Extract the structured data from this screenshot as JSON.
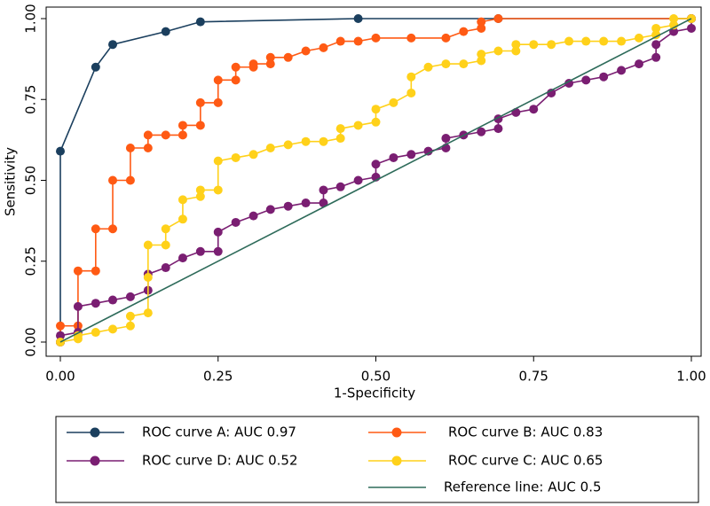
{
  "chart_data": {
    "type": "line",
    "x_label": "1-Specificity",
    "y_label": "Sensitivity",
    "xlim": [
      0,
      1
    ],
    "ylim": [
      0,
      1
    ],
    "xticks": [
      {
        "value": 0,
        "label": "0.00"
      },
      {
        "value": 0.25,
        "label": "0.25"
      },
      {
        "value": 0.5,
        "label": "0.50"
      },
      {
        "value": 0.75,
        "label": "0.75"
      },
      {
        "value": 1,
        "label": "1.00"
      }
    ],
    "yticks": [
      {
        "value": 0,
        "label": "0.00"
      },
      {
        "value": 0.25,
        "label": "0.25"
      },
      {
        "value": 0.5,
        "label": "0.50"
      },
      {
        "value": 0.75,
        "label": "0.75"
      },
      {
        "value": 1,
        "label": "1.00"
      }
    ],
    "grid": false,
    "series": [
      {
        "name": "ROC curve A: AUC 0.97",
        "color": "#1b3f5e",
        "markers": true,
        "x": [
          0,
          0,
          0.056,
          0.083,
          0.167,
          0.222,
          0.472,
          0.694,
          1
        ],
        "values": [
          0,
          0.59,
          0.85,
          0.92,
          0.96,
          0.99,
          1.0,
          1.0,
          1.0
        ]
      },
      {
        "name": "ROC curve B: AUC 0.83",
        "color": "#ff5a14",
        "markers": true,
        "x": [
          0,
          0,
          0.028,
          0.028,
          0.056,
          0.056,
          0.083,
          0.083,
          0.111,
          0.111,
          0.139,
          0.139,
          0.167,
          0.194,
          0.194,
          0.222,
          0.222,
          0.25,
          0.25,
          0.278,
          0.278,
          0.306,
          0.306,
          0.333,
          0.333,
          0.361,
          0.389,
          0.417,
          0.444,
          0.472,
          0.5,
          0.556,
          0.611,
          0.639,
          0.667,
          0.667,
          0.694,
          1
        ],
        "values": [
          0,
          0.05,
          0.05,
          0.22,
          0.22,
          0.35,
          0.35,
          0.5,
          0.5,
          0.6,
          0.6,
          0.64,
          0.64,
          0.64,
          0.67,
          0.67,
          0.74,
          0.74,
          0.81,
          0.81,
          0.85,
          0.85,
          0.86,
          0.86,
          0.88,
          0.88,
          0.9,
          0.91,
          0.93,
          0.93,
          0.94,
          0.94,
          0.94,
          0.96,
          0.97,
          0.99,
          1.0,
          1.0
        ]
      },
      {
        "name": "ROC curve D: AUC 0.52",
        "color": "#7a1e72",
        "markers": true,
        "x": [
          0,
          0,
          0.028,
          0.028,
          0.056,
          0.083,
          0.111,
          0.139,
          0.139,
          0.167,
          0.194,
          0.222,
          0.25,
          0.25,
          0.278,
          0.306,
          0.333,
          0.361,
          0.389,
          0.417,
          0.417,
          0.444,
          0.472,
          0.5,
          0.5,
          0.528,
          0.556,
          0.583,
          0.611,
          0.611,
          0.639,
          0.667,
          0.694,
          0.694,
          0.722,
          0.75,
          0.778,
          0.806,
          0.833,
          0.861,
          0.889,
          0.917,
          0.944,
          0.944,
          0.972,
          1,
          1
        ],
        "values": [
          0,
          0.02,
          0.03,
          0.11,
          0.12,
          0.13,
          0.14,
          0.16,
          0.21,
          0.23,
          0.26,
          0.28,
          0.28,
          0.34,
          0.37,
          0.39,
          0.41,
          0.42,
          0.43,
          0.43,
          0.47,
          0.48,
          0.5,
          0.51,
          0.55,
          0.57,
          0.58,
          0.59,
          0.6,
          0.63,
          0.64,
          0.65,
          0.66,
          0.69,
          0.71,
          0.72,
          0.77,
          0.8,
          0.81,
          0.82,
          0.84,
          0.86,
          0.88,
          0.92,
          0.96,
          0.97,
          1.0
        ]
      },
      {
        "name": "ROC curve C: AUC 0.65",
        "color": "#ffd11a",
        "markers": true,
        "x": [
          0,
          0.028,
          0.028,
          0.056,
          0.083,
          0.111,
          0.111,
          0.139,
          0.139,
          0.139,
          0.167,
          0.167,
          0.194,
          0.194,
          0.222,
          0.222,
          0.25,
          0.25,
          0.278,
          0.306,
          0.333,
          0.361,
          0.389,
          0.417,
          0.444,
          0.444,
          0.472,
          0.5,
          0.5,
          0.528,
          0.556,
          0.556,
          0.583,
          0.611,
          0.639,
          0.667,
          0.667,
          0.694,
          0.722,
          0.722,
          0.75,
          0.778,
          0.806,
          0.833,
          0.861,
          0.889,
          0.917,
          0.944,
          0.944,
          0.972,
          0.972,
          1
        ],
        "values": [
          0,
          0.01,
          0.02,
          0.03,
          0.04,
          0.05,
          0.08,
          0.09,
          0.2,
          0.3,
          0.3,
          0.35,
          0.38,
          0.44,
          0.45,
          0.47,
          0.47,
          0.56,
          0.57,
          0.58,
          0.6,
          0.61,
          0.62,
          0.62,
          0.63,
          0.66,
          0.67,
          0.68,
          0.72,
          0.74,
          0.77,
          0.82,
          0.85,
          0.86,
          0.86,
          0.87,
          0.89,
          0.9,
          0.9,
          0.92,
          0.92,
          0.92,
          0.93,
          0.93,
          0.93,
          0.93,
          0.94,
          0.95,
          0.97,
          0.98,
          1.0,
          1.0
        ]
      },
      {
        "name": "Reference line: AUC 0.5",
        "color": "#2e6b5a",
        "markers": false,
        "x": [
          0,
          1
        ],
        "values": [
          0,
          1
        ]
      }
    ]
  }
}
